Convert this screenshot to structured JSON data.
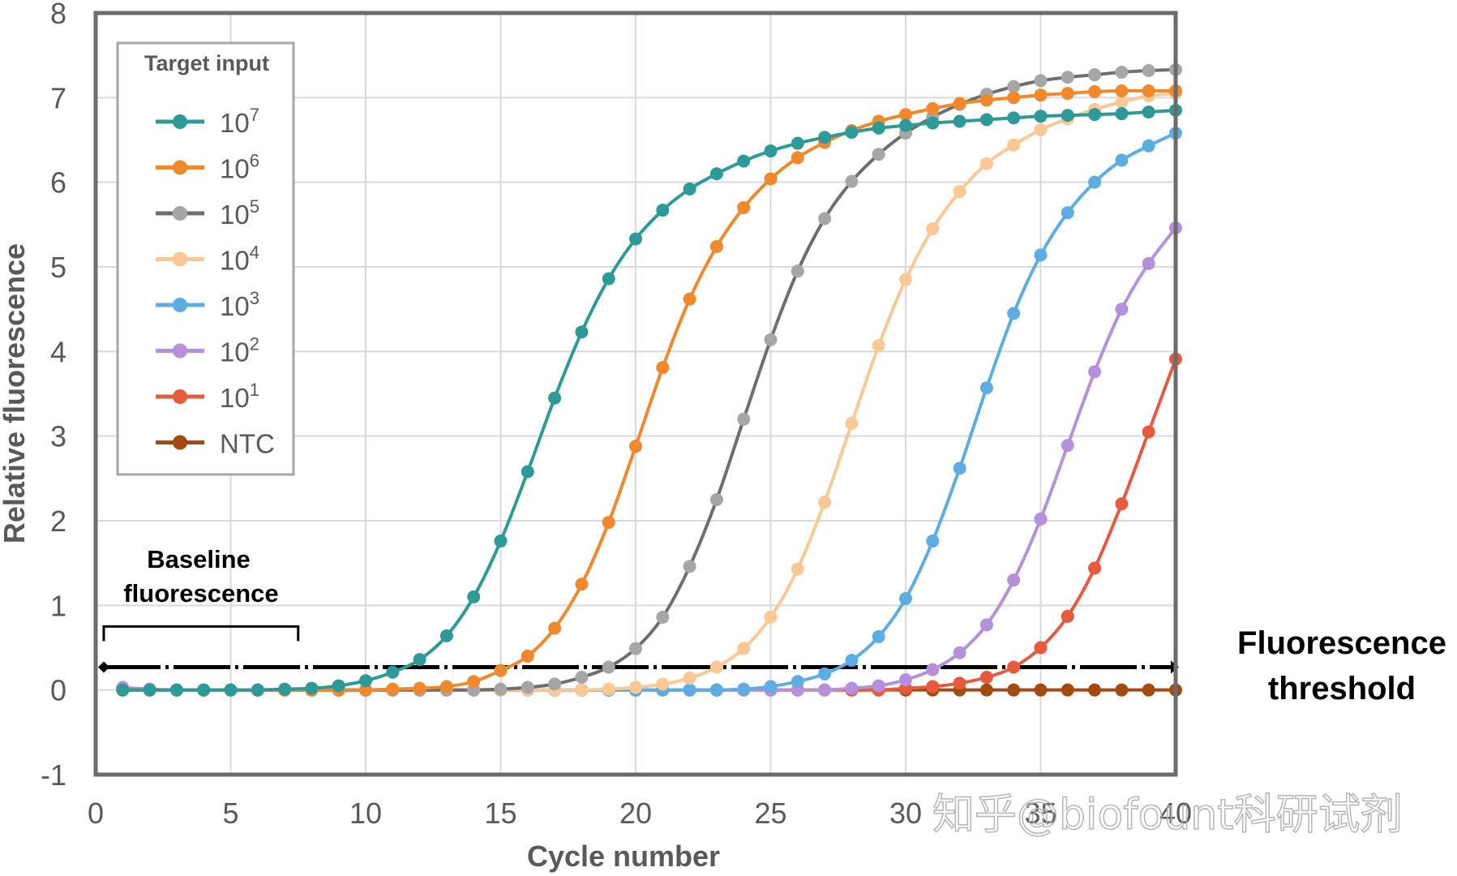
{
  "chart_data": {
    "type": "line",
    "title": "",
    "xlabel": "Cycle number",
    "ylabel": "Relative fluorescence",
    "xlim": [
      0,
      40
    ],
    "ylim": [
      -1,
      8
    ],
    "xticks": [
      0,
      5,
      10,
      15,
      20,
      25,
      30,
      35,
      40
    ],
    "yticks": [
      -1,
      0,
      1,
      2,
      3,
      4,
      5,
      6,
      7,
      8
    ],
    "grid": true,
    "legend": {
      "title": "Target input",
      "position": "upper-left"
    },
    "x": [
      1,
      2,
      3,
      4,
      5,
      6,
      7,
      8,
      9,
      10,
      11,
      12,
      13,
      14,
      15,
      16,
      17,
      18,
      19,
      20,
      21,
      22,
      23,
      24,
      25,
      26,
      27,
      28,
      29,
      30,
      31,
      32,
      33,
      34,
      35,
      36,
      37,
      38,
      39,
      40
    ],
    "series": [
      {
        "name": "10^7",
        "base": "10",
        "exp": "7",
        "color": "#2E9A98",
        "values": [
          0,
          0,
          0,
          0,
          0,
          0,
          0.01,
          0.02,
          0.05,
          0.11,
          0.21,
          0.36,
          0.64,
          1.1,
          1.76,
          2.58,
          3.45,
          4.23,
          4.86,
          5.33,
          5.67,
          5.92,
          6.1,
          6.25,
          6.37,
          6.46,
          6.53,
          6.59,
          6.64,
          6.67,
          6.7,
          6.72,
          6.74,
          6.76,
          6.78,
          6.79,
          6.8,
          6.81,
          6.83,
          6.85
        ]
      },
      {
        "name": "10^6",
        "base": "10",
        "exp": "6",
        "color": "#F0892E",
        "values": [
          0,
          0,
          0,
          0,
          0,
          0,
          0,
          0,
          0,
          0,
          0.01,
          0.02,
          0.04,
          0.1,
          0.23,
          0.4,
          0.73,
          1.25,
          1.98,
          2.88,
          3.81,
          4.62,
          5.24,
          5.7,
          6.04,
          6.29,
          6.47,
          6.61,
          6.72,
          6.8,
          6.87,
          6.93,
          6.97,
          7.0,
          7.03,
          7.05,
          7.07,
          7.08,
          7.08,
          7.08
        ]
      },
      {
        "name": "10^5",
        "base": "10",
        "exp": "5",
        "color": "#6E6E6E",
        "marker_color": "#A6A6A6",
        "values": [
          0,
          0,
          0,
          0,
          0,
          0,
          0,
          0,
          0,
          0,
          0,
          0,
          0,
          0,
          0.01,
          0.03,
          0.07,
          0.15,
          0.27,
          0.49,
          0.86,
          1.46,
          2.25,
          3.2,
          4.14,
          4.95,
          5.57,
          6.01,
          6.33,
          6.58,
          6.77,
          6.92,
          7.04,
          7.13,
          7.2,
          7.24,
          7.27,
          7.3,
          7.32,
          7.33
        ]
      },
      {
        "name": "10^4",
        "base": "10",
        "exp": "4",
        "color": "#F9C895",
        "values": [
          0,
          0,
          0,
          0,
          0,
          0,
          0,
          0,
          0,
          0,
          0,
          0,
          0,
          0,
          0,
          0,
          0,
          0,
          0.01,
          0.03,
          0.07,
          0.14,
          0.27,
          0.49,
          0.86,
          1.43,
          2.22,
          3.15,
          4.07,
          4.85,
          5.45,
          5.89,
          6.22,
          6.44,
          6.62,
          6.75,
          6.86,
          6.95,
          7.02,
          7.05
        ]
      },
      {
        "name": "10^3",
        "base": "10",
        "exp": "3",
        "color": "#5DADE2",
        "values": [
          0,
          0,
          0,
          0,
          0,
          0,
          0,
          0,
          0,
          0,
          0,
          0,
          0,
          0,
          0,
          0,
          0,
          0,
          0,
          0,
          0,
          0,
          0,
          0.01,
          0.04,
          0.1,
          0.19,
          0.35,
          0.63,
          1.08,
          1.76,
          2.62,
          3.57,
          4.45,
          5.14,
          5.64,
          6.0,
          6.26,
          6.43,
          6.58
        ]
      },
      {
        "name": "10^2",
        "base": "10",
        "exp": "2",
        "color": "#B590DB",
        "values": [
          0.03,
          0.01,
          0,
          0,
          0,
          0,
          0,
          0,
          0,
          0,
          0,
          0,
          0,
          0,
          0,
          0,
          0,
          0,
          0,
          0,
          0,
          0,
          0,
          0,
          0,
          0,
          0,
          0.02,
          0.05,
          0.12,
          0.24,
          0.44,
          0.77,
          1.3,
          2.02,
          2.89,
          3.76,
          4.5,
          5.04,
          5.46
        ]
      },
      {
        "name": "10^1",
        "base": "10",
        "exp": "1",
        "color": "#E65A3E",
        "values": [
          0,
          0,
          0,
          0,
          0,
          0,
          0,
          0,
          0,
          0,
          0,
          0,
          0,
          0,
          0,
          0,
          0,
          0,
          0,
          0,
          0,
          0,
          0,
          0,
          0,
          0,
          0,
          0,
          0,
          0.02,
          0.04,
          0.08,
          0.15,
          0.27,
          0.5,
          0.87,
          1.44,
          2.2,
          3.05,
          3.91
        ]
      },
      {
        "name": "NTC",
        "base": "NTC",
        "exp": "",
        "color": "#A34A10",
        "values": [
          0,
          0,
          0,
          0,
          0,
          0,
          0,
          0,
          0,
          0,
          0,
          0,
          0,
          0,
          0,
          0,
          0,
          0,
          0,
          0,
          0,
          0,
          0,
          0,
          0,
          0,
          0,
          0,
          0,
          0,
          0,
          0,
          0,
          0,
          0,
          0,
          0,
          0,
          0,
          0
        ]
      }
    ],
    "annotations": [
      {
        "text": "Baseline fluorescence",
        "type": "bracket",
        "x_range": [
          0.3,
          7.5
        ],
        "y": 0.75
      },
      {
        "text": "Fluorescence threshold",
        "type": "dashed-line",
        "y": 0.27,
        "x_range": [
          0.3,
          40
        ]
      }
    ]
  },
  "labels": {
    "baseline_line1": "Baseline",
    "baseline_line2": "fluorescence",
    "threshold_line1": "Fluorescence",
    "threshold_line2": "threshold",
    "watermark": "知乎@biofount科研试剂"
  }
}
